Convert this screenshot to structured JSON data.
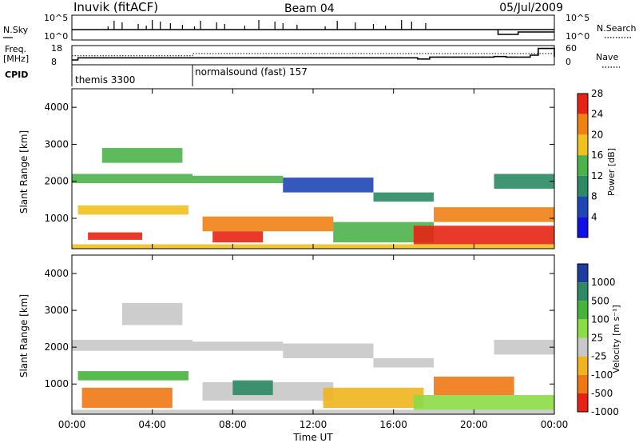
{
  "header": {
    "station": "Inuvik (fitACF)",
    "beam": "Beam 04",
    "date": "05/Jul/2009"
  },
  "side_labels": {
    "nsky": "N.Sky",
    "freq_line1": "Freq.",
    "freq_line2": "[MHz]",
    "cpid": "CPID",
    "nsearch": "N.Search",
    "nave": "Nave"
  },
  "cpid_segments": [
    {
      "label": "themis 3300",
      "start_hour": 0
    },
    {
      "label": "normalsound (fast) 157",
      "start_hour": 6
    }
  ],
  "chart_data": [
    {
      "type": "line",
      "title": "N.Sky / N.Search",
      "xlim": [
        0,
        24
      ],
      "y_ticks_left": [
        "10^5",
        "10^0"
      ],
      "y_ticks_right": [
        "10^5",
        "10^0"
      ]
    },
    {
      "type": "line",
      "title": "Freq. / Nave",
      "xlim": [
        0,
        24
      ],
      "y_ticks_left": [
        "18",
        "8"
      ],
      "y_ticks_right": [
        "60",
        "0"
      ],
      "series": [
        {
          "name": "Freq.",
          "x": [
            0,
            0.3,
            6,
            17.2,
            17.8,
            21.0,
            21.6,
            22.8,
            23.2,
            24
          ],
          "y": [
            10.5,
            11.6,
            11.6,
            11.0,
            12.0,
            12.3,
            12.0,
            13.0,
            16.5,
            12.0
          ]
        },
        {
          "name": "Nave",
          "x": [
            0,
            6,
            6.01,
            24
          ],
          "y": [
            28,
            28,
            35,
            35
          ]
        }
      ]
    },
    {
      "type": "heatmap",
      "title": "Power",
      "ylabel": "Slant Range [km]",
      "xlim": [
        0,
        24
      ],
      "ylim": [
        180,
        4500
      ],
      "y_ticks": [
        "1000",
        "2000",
        "3000",
        "4000"
      ],
      "colorbar_label": "Power [dB]",
      "colorbar_ticks": [
        "4",
        "8",
        "12",
        "16",
        "20",
        "24",
        "28"
      ],
      "colorbar_colors": [
        "#1010e6",
        "#1e46b4",
        "#2e8a64",
        "#4cb24a",
        "#f0c21e",
        "#f08214",
        "#e62314"
      ],
      "bands": [
        {
          "t0": 0.0,
          "t1": 6.0,
          "r0": 1950,
          "r1": 2200,
          "level": 3
        },
        {
          "t0": 0.3,
          "t1": 5.8,
          "r0": 1100,
          "r1": 1350,
          "level": 4
        },
        {
          "t0": 0.8,
          "t1": 3.5,
          "r0": 420,
          "r1": 620,
          "level": 6
        },
        {
          "t0": 1.5,
          "t1": 5.5,
          "r0": 2500,
          "r1": 2900,
          "level": 3
        },
        {
          "t0": 6.0,
          "t1": 10.5,
          "r0": 1950,
          "r1": 2150,
          "level": 3
        },
        {
          "t0": 6.5,
          "t1": 13.0,
          "r0": 650,
          "r1": 1050,
          "level": 5
        },
        {
          "t0": 7.0,
          "t1": 9.5,
          "r0": 350,
          "r1": 650,
          "level": 6
        },
        {
          "t0": 10.5,
          "t1": 15.0,
          "r0": 1700,
          "r1": 2100,
          "level": 1
        },
        {
          "t0": 13.0,
          "t1": 18.0,
          "r0": 350,
          "r1": 900,
          "level": 3
        },
        {
          "t0": 15.0,
          "t1": 18.0,
          "r0": 1450,
          "r1": 1700,
          "level": 2
        },
        {
          "t0": 17.0,
          "t1": 24.0,
          "r0": 300,
          "r1": 800,
          "level": 6
        },
        {
          "t0": 18.0,
          "t1": 24.0,
          "r0": 900,
          "r1": 1300,
          "level": 5
        },
        {
          "t0": 21.0,
          "t1": 24.0,
          "r0": 1800,
          "r1": 2200,
          "level": 2
        },
        {
          "t0": 0.0,
          "t1": 24.0,
          "r0": 180,
          "r1": 300,
          "level": 4
        }
      ]
    },
    {
      "type": "heatmap",
      "title": "Velocity",
      "ylabel": "Slant Range [km]",
      "xlabel": "Time UT",
      "xlim": [
        0,
        24
      ],
      "ylim": [
        180,
        4500
      ],
      "x_ticks": [
        "00:00",
        "04:00",
        "08:00",
        "12:00",
        "16:00",
        "20:00",
        "00:00"
      ],
      "y_ticks": [
        "1000",
        "2000",
        "3000",
        "4000"
      ],
      "colorbar_label": "Velocity [m s⁻¹]",
      "colorbar_ticks": [
        "1000",
        "500",
        "100",
        "25",
        "-25",
        "-100",
        "-500",
        "-1000"
      ],
      "colorbar_colors": [
        "#1e3ca0",
        "#2e8a64",
        "#46b43c",
        "#8cdc46",
        "#c8c8c8",
        "#f0b41e",
        "#f07814",
        "#e62314"
      ],
      "bands": [
        {
          "t0": 0.0,
          "t1": 6.0,
          "r0": 1900,
          "r1": 2200,
          "level": 4
        },
        {
          "t0": 2.5,
          "t1": 5.5,
          "r0": 2600,
          "r1": 3200,
          "level": 4
        },
        {
          "t0": 0.3,
          "t1": 5.8,
          "r0": 1100,
          "r1": 1350,
          "level": 2
        },
        {
          "t0": 0.5,
          "t1": 5.0,
          "r0": 350,
          "r1": 900,
          "level": 6
        },
        {
          "t0": 6.0,
          "t1": 10.5,
          "r0": 1900,
          "r1": 2150,
          "level": 4
        },
        {
          "t0": 6.5,
          "t1": 13.0,
          "r0": 550,
          "r1": 1050,
          "level": 4
        },
        {
          "t0": 8.0,
          "t1": 10.0,
          "r0": 700,
          "r1": 1100,
          "level": 1
        },
        {
          "t0": 10.5,
          "t1": 15.0,
          "r0": 1700,
          "r1": 2100,
          "level": 4
        },
        {
          "t0": 12.5,
          "t1": 17.5,
          "r0": 350,
          "r1": 900,
          "level": 5
        },
        {
          "t0": 15.0,
          "t1": 18.0,
          "r0": 1450,
          "r1": 1700,
          "level": 4
        },
        {
          "t0": 17.0,
          "t1": 24.0,
          "r0": 300,
          "r1": 700,
          "level": 3
        },
        {
          "t0": 18.0,
          "t1": 22.0,
          "r0": 700,
          "r1": 1200,
          "level": 6
        },
        {
          "t0": 21.0,
          "t1": 24.0,
          "r0": 1800,
          "r1": 2200,
          "level": 4
        },
        {
          "t0": 0.0,
          "t1": 24.0,
          "r0": 180,
          "r1": 300,
          "level": 4
        }
      ]
    }
  ]
}
